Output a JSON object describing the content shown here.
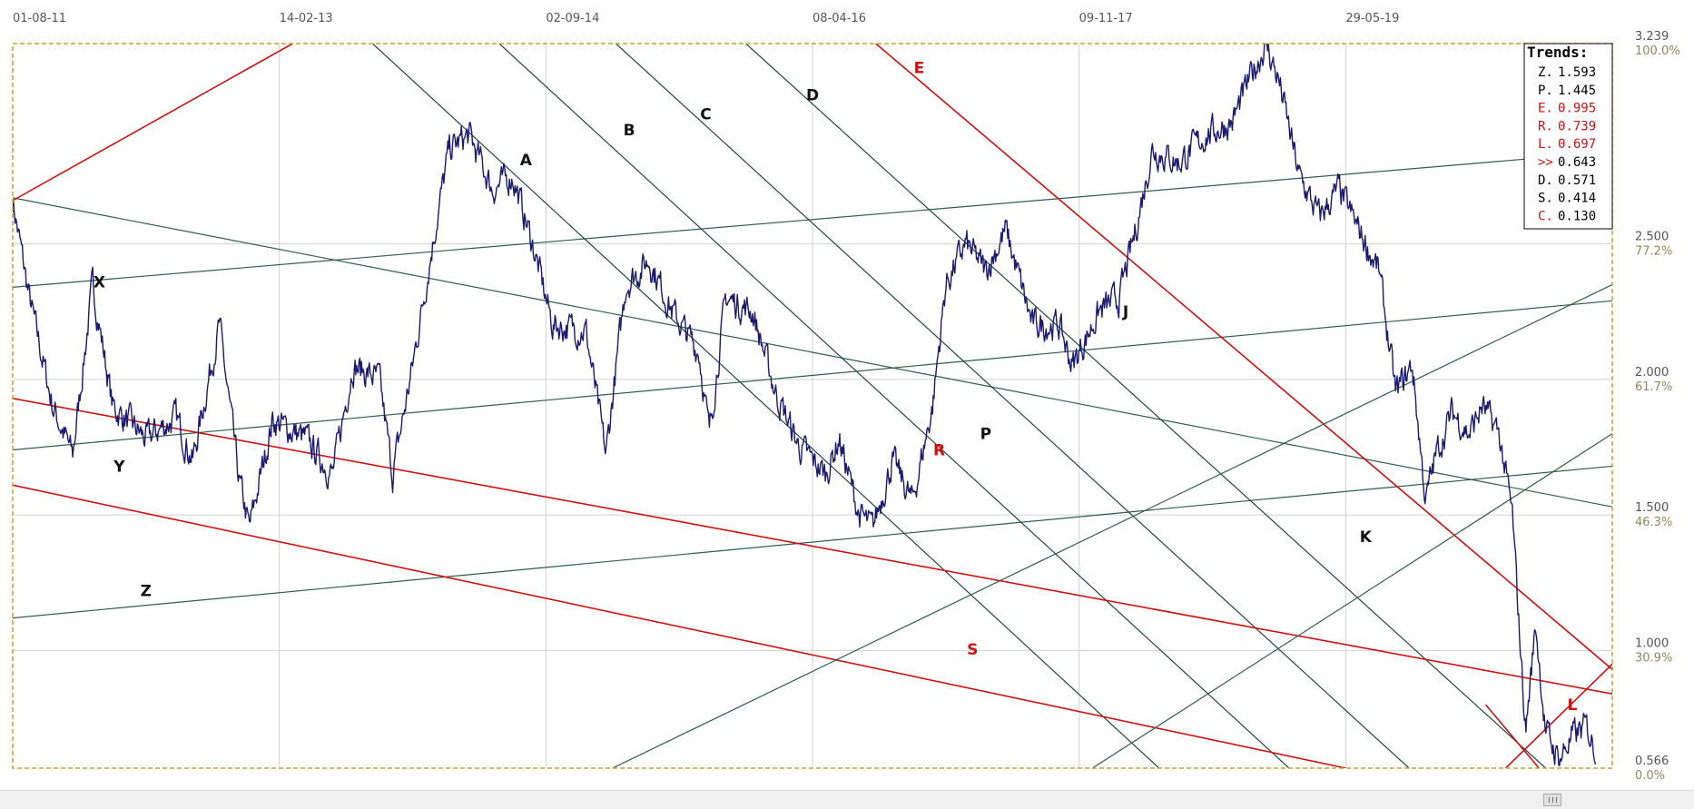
{
  "chart_data": {
    "type": "line",
    "x_tick_labels": [
      "01-08-11",
      "14-02-13",
      "02-09-14",
      "08-04-16",
      "09-11-17",
      "29-05-19"
    ],
    "y_axis_labels": [
      {
        "value": "3.239",
        "percent": "100.0%"
      },
      {
        "value": "2.500",
        "percent": "77.2%"
      },
      {
        "value": "2.000",
        "percent": "61.7%"
      },
      {
        "value": "1.500",
        "percent": "46.3%"
      },
      {
        "value": "1.000",
        "percent": "30.9%"
      },
      {
        "value": "0.566",
        "percent": "0.0%"
      }
    ],
    "y_range": [
      0.566,
      3.239
    ],
    "gridlines": true,
    "series_color": "#1a1a6e",
    "price_waypoints": [
      [
        0,
        2.66
      ],
      [
        0.25,
        2.3
      ],
      [
        0.6,
        1.9
      ],
      [
        0.9,
        1.72
      ],
      [
        1.2,
        2.35
      ],
      [
        1.5,
        1.9
      ],
      [
        2.0,
        1.78
      ],
      [
        2.45,
        1.86
      ],
      [
        2.7,
        1.7
      ],
      [
        3.1,
        2.2
      ],
      [
        3.4,
        1.62
      ],
      [
        3.55,
        1.45
      ],
      [
        3.9,
        1.85
      ],
      [
        4.4,
        1.78
      ],
      [
        4.8,
        1.65
      ],
      [
        5.1,
        2.05
      ],
      [
        5.5,
        2.0
      ],
      [
        5.7,
        1.65
      ],
      [
        6.0,
        2.05
      ],
      [
        6.3,
        2.5
      ],
      [
        6.55,
        2.85
      ],
      [
        6.85,
        2.9
      ],
      [
        7.2,
        2.7
      ],
      [
        7.5,
        2.75
      ],
      [
        7.8,
        2.5
      ],
      [
        8.1,
        2.2
      ],
      [
        8.6,
        2.18
      ],
      [
        8.9,
        1.72
      ],
      [
        9.2,
        2.35
      ],
      [
        9.55,
        2.44
      ],
      [
        9.9,
        2.25
      ],
      [
        10.3,
        2.1
      ],
      [
        10.45,
        1.8
      ],
      [
        10.7,
        2.3
      ],
      [
        11.1,
        2.25
      ],
      [
        11.45,
        1.95
      ],
      [
        11.8,
        1.75
      ],
      [
        12.2,
        1.65
      ],
      [
        12.4,
        1.78
      ],
      [
        12.7,
        1.5
      ],
      [
        12.9,
        1.45
      ],
      [
        13.2,
        1.7
      ],
      [
        13.5,
        1.55
      ],
      [
        13.8,
        1.9
      ],
      [
        14.0,
        2.35
      ],
      [
        14.3,
        2.5
      ],
      [
        14.6,
        2.4
      ],
      [
        14.9,
        2.55
      ],
      [
        15.3,
        2.2
      ],
      [
        15.7,
        2.2
      ],
      [
        15.9,
        2.05
      ],
      [
        16.3,
        2.25
      ],
      [
        16.6,
        2.3
      ],
      [
        16.85,
        2.55
      ],
      [
        17.1,
        2.85
      ],
      [
        17.5,
        2.8
      ],
      [
        17.9,
        2.9
      ],
      [
        18.3,
        2.95
      ],
      [
        18.55,
        3.1
      ],
      [
        18.8,
        3.239
      ],
      [
        19.0,
        3.1
      ],
      [
        19.3,
        2.75
      ],
      [
        19.6,
        2.6
      ],
      [
        19.9,
        2.7
      ],
      [
        20.2,
        2.55
      ],
      [
        20.5,
        2.4
      ],
      [
        20.75,
        1.95
      ],
      [
        21.0,
        2.05
      ],
      [
        21.2,
        1.55
      ],
      [
        21.35,
        1.72
      ],
      [
        21.6,
        1.88
      ],
      [
        21.85,
        1.8
      ],
      [
        22.05,
        1.9
      ],
      [
        22.3,
        1.8
      ],
      [
        22.5,
        1.5
      ],
      [
        22.7,
        0.7
      ],
      [
        22.85,
        1.1
      ],
      [
        23.0,
        0.7
      ],
      [
        23.2,
        0.6
      ],
      [
        23.4,
        0.68
      ],
      [
        23.6,
        0.72
      ],
      [
        23.75,
        0.64
      ]
    ],
    "trendlines": [
      {
        "label": "X",
        "color": "#2f5f4a",
        "from": [
          0,
          2.67
        ],
        "to": [
          24,
          1.53
        ]
      },
      {
        "label": "Y",
        "color": "#2f5f4a",
        "from": [
          0,
          1.74
        ],
        "to": [
          24,
          2.29
        ]
      },
      {
        "label": "Z",
        "color": "#2f5f4a",
        "from": [
          0,
          1.12
        ],
        "to": [
          24,
          1.68
        ]
      },
      {
        "label": "",
        "color": "#2f5f4a",
        "from": [
          0,
          2.34
        ],
        "to": [
          24,
          2.84
        ]
      },
      {
        "label": "A",
        "color": "#1e4a3c",
        "from": [
          5.4,
          3.239
        ],
        "to": [
          17.2,
          0.566
        ]
      },
      {
        "label": "B",
        "color": "#1e4a3c",
        "from": [
          7.3,
          3.239
        ],
        "to": [
          19.15,
          0.566
        ]
      },
      {
        "label": "C",
        "color": "#1e4a3c",
        "from": [
          9.05,
          3.239
        ],
        "to": [
          20.95,
          0.566
        ]
      },
      {
        "label": "D",
        "color": "#1e4a3c",
        "from": [
          11.0,
          3.239
        ],
        "to": [
          23.0,
          0.566
        ]
      },
      {
        "label": "E",
        "color": "#cc1111",
        "from": [
          12.95,
          3.239
        ],
        "to": [
          24,
          0.93
        ]
      },
      {
        "label": "R",
        "color": "#cc1111",
        "from": [
          0,
          1.93
        ],
        "to": [
          24,
          0.84
        ]
      },
      {
        "label": "S",
        "color": "#cc1111",
        "from": [
          0,
          1.61
        ],
        "to": [
          20.0,
          0.566
        ]
      },
      {
        "label": "P",
        "color": "#2f5f4a",
        "from": [
          9.0,
          0.566
        ],
        "to": [
          24,
          2.35
        ]
      },
      {
        "label": "J",
        "color": "#2f5f4a",
        "from": [
          16.2,
          0.566
        ],
        "to": [
          24,
          1.8
        ]
      },
      {
        "label": "",
        "color": "#cc1111",
        "from": [
          0,
          2.66
        ],
        "to": [
          4.2,
          3.239
        ]
      },
      {
        "label": "L",
        "color": "#cc1111",
        "from": [
          22.4,
          0.566
        ],
        "to": [
          24,
          0.95
        ]
      },
      {
        "label": "",
        "color": "#cc1111",
        "from": [
          22.1,
          0.8
        ],
        "to": [
          22.9,
          0.566
        ]
      }
    ],
    "trendline_labels": [
      {
        "label": "X",
        "color": "#111111",
        "at": [
          1.3,
          2.34
        ]
      },
      {
        "label": "Y",
        "color": "#111111",
        "at": [
          1.6,
          1.66
        ]
      },
      {
        "label": "Z",
        "color": "#111111",
        "at": [
          2.0,
          1.2
        ]
      },
      {
        "label": "A",
        "color": "#111111",
        "at": [
          7.7,
          2.79
        ]
      },
      {
        "label": "B",
        "color": "#111111",
        "at": [
          9.25,
          2.9
        ]
      },
      {
        "label": "C",
        "color": "#111111",
        "at": [
          10.4,
          2.96
        ]
      },
      {
        "label": "D",
        "color": "#111111",
        "at": [
          12.0,
          3.03
        ]
      },
      {
        "label": "E",
        "color": "#cc1111",
        "at": [
          13.6,
          3.13
        ]
      },
      {
        "label": "J",
        "color": "#111111",
        "at": [
          16.7,
          2.23
        ]
      },
      {
        "label": "P",
        "color": "#111111",
        "at": [
          14.6,
          1.78
        ]
      },
      {
        "label": "K",
        "color": "#111111",
        "at": [
          20.3,
          1.4
        ]
      },
      {
        "label": "R",
        "color": "#cc1111",
        "at": [
          13.9,
          1.72
        ]
      },
      {
        "label": "S",
        "color": "#cc1111",
        "at": [
          14.4,
          0.985
        ]
      },
      {
        "label": "L",
        "color": "#cc1111",
        "at": [
          23.4,
          0.78
        ]
      }
    ]
  },
  "legend": {
    "title": "Trends:",
    "entries": [
      {
        "key": "Z.",
        "value": "1.593",
        "key_color": "#000000",
        "value_color": "#000000"
      },
      {
        "key": "P.",
        "value": "1.445",
        "key_color": "#000000",
        "value_color": "#000000"
      },
      {
        "key": "E.",
        "value": "0.995",
        "key_color": "#cc1111",
        "value_color": "#cc1111"
      },
      {
        "key": "R.",
        "value": "0.739",
        "key_color": "#cc1111",
        "value_color": "#cc1111"
      },
      {
        "key": "L.",
        "value": "0.697",
        "key_color": "#cc1111",
        "value_color": "#cc1111"
      },
      {
        "key": ">>",
        "value": "0.643",
        "key_color": "#cc1111",
        "value_color": "#000000"
      },
      {
        "key": "D.",
        "value": "0.571",
        "key_color": "#000000",
        "value_color": "#000000"
      },
      {
        "key": "S.",
        "value": "0.414",
        "key_color": "#000000",
        "value_color": "#000000"
      },
      {
        "key": "C.",
        "value": "0.130",
        "key_color": "#cc1111",
        "value_color": "#000000"
      }
    ]
  },
  "colors": {
    "frame": "#c8a030",
    "grid": "#d0d0d0",
    "price": "#1a1a6e"
  }
}
